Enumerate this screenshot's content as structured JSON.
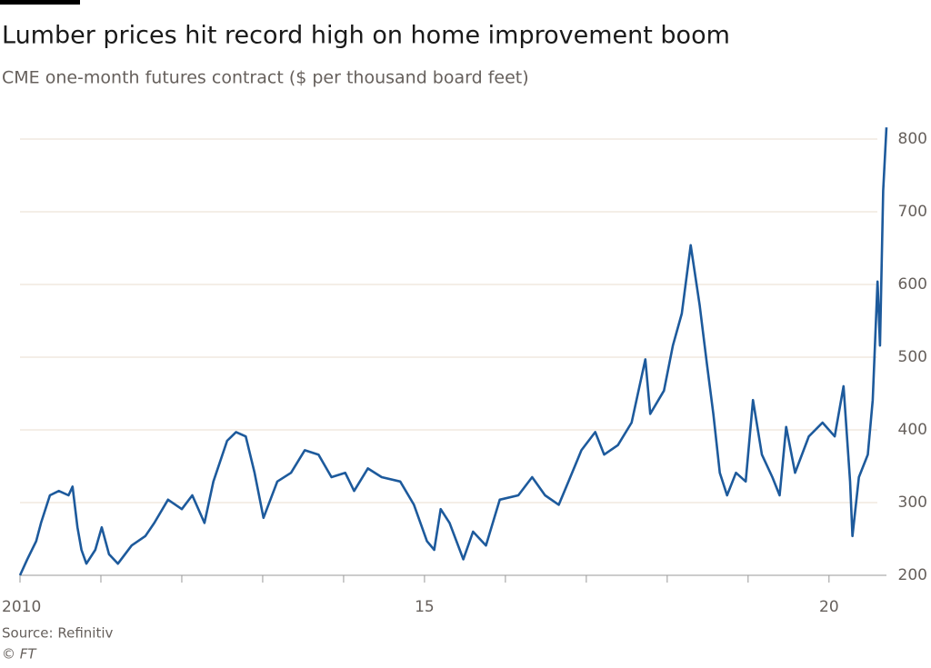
{
  "chart_data": {
    "type": "line",
    "title": "Lumber prices hit record high on home improvement boom",
    "subtitle": "CME one-month futures contract ($ per thousand board feet)",
    "source": "Source: Refinitiv",
    "credit": "© FT",
    "x": [
      2010.0,
      2010.09,
      2010.2,
      2010.26,
      2010.37,
      2010.48,
      2010.6,
      2010.65,
      2010.71,
      2010.76,
      2010.82,
      2010.93,
      2011.01,
      2011.1,
      2011.21,
      2011.38,
      2011.55,
      2011.66,
      2011.83,
      2012.0,
      2012.13,
      2012.28,
      2012.39,
      2012.56,
      2012.67,
      2012.79,
      2012.9,
      2013.01,
      2013.18,
      2013.35,
      2013.52,
      2013.69,
      2013.85,
      2014.02,
      2014.13,
      2014.3,
      2014.47,
      2014.7,
      2014.87,
      2015.03,
      2015.12,
      2015.2,
      2015.31,
      2015.48,
      2015.6,
      2015.76,
      2015.93,
      2016.16,
      2016.33,
      2016.49,
      2016.66,
      2016.78,
      2016.94,
      2017.11,
      2017.22,
      2017.39,
      2017.56,
      2017.73,
      2017.79,
      2017.96,
      2018.07,
      2018.18,
      2018.29,
      2018.4,
      2018.49,
      2018.57,
      2018.65,
      2018.74,
      2018.85,
      2018.97,
      2019.06,
      2019.17,
      2019.3,
      2019.39,
      2019.47,
      2019.58,
      2019.75,
      2019.92,
      2020.07,
      2020.18,
      2020.26,
      2020.29,
      2020.37,
      2020.48,
      2020.54,
      2020.6,
      2020.63,
      2020.67,
      2020.71
    ],
    "series": [
      {
        "name": "Lumber",
        "color": "#1d5a9c",
        "values": [
          200,
          222,
          247,
          272,
          310,
          316,
          310,
          322,
          266,
          235,
          216,
          235,
          266,
          229,
          216,
          241,
          254,
          272,
          304,
          291,
          310,
          272,
          329,
          385,
          397,
          391,
          341,
          279,
          329,
          341,
          372,
          366,
          335,
          341,
          316,
          347,
          335,
          329,
          297,
          247,
          235,
          291,
          272,
          222,
          260,
          241,
          304,
          310,
          335,
          310,
          297,
          329,
          372,
          397,
          366,
          379,
          410,
          497,
          422,
          454,
          516,
          560,
          654,
          572,
          491,
          422,
          341,
          310,
          341,
          329,
          441,
          366,
          335,
          310,
          404,
          341,
          391,
          410,
          391,
          460,
          329,
          254,
          335,
          366,
          441,
          604,
          516,
          729,
          816
        ]
      }
    ],
    "xlim": [
      2010,
      2020.71
    ],
    "xticks": [
      {
        "value": 2010,
        "label": "2010"
      },
      {
        "value": 2015,
        "label": "15"
      },
      {
        "value": 2020,
        "label": "20"
      }
    ],
    "xminor_ticks": [
      2011,
      2012,
      2013,
      2014,
      2016,
      2017,
      2018,
      2019
    ],
    "ylim": [
      200,
      800
    ],
    "yticks": [
      200,
      300,
      400,
      500,
      600,
      700,
      800
    ],
    "grid": true
  }
}
